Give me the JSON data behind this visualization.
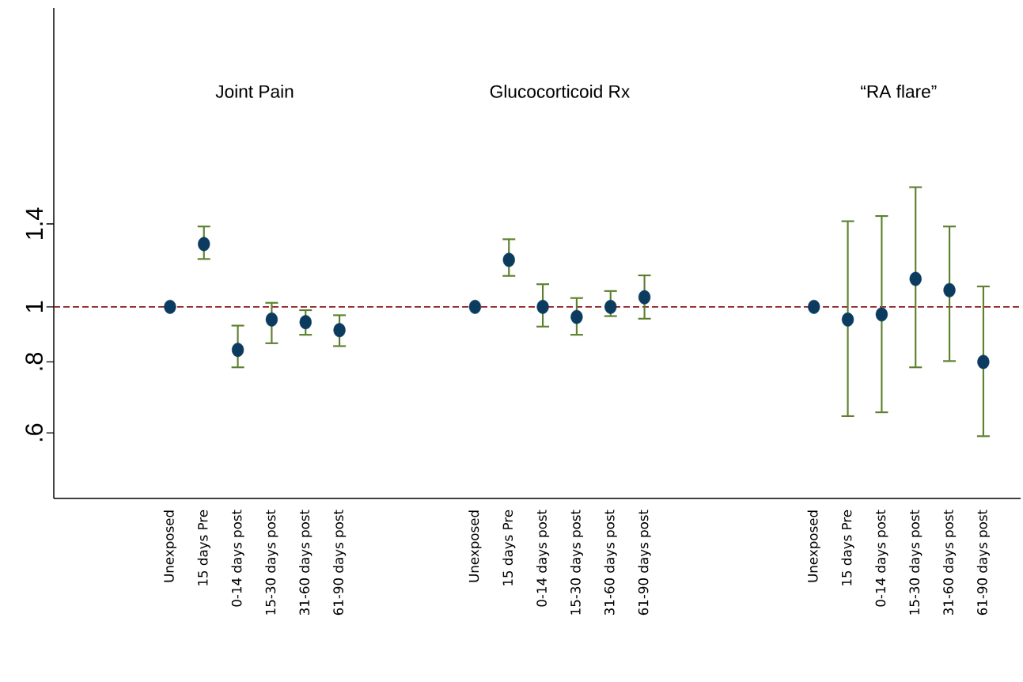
{
  "chart_data": {
    "type": "scatter",
    "categories": [
      "Unexposed",
      "15 days Pre",
      "0-14 days post",
      "15-30 days post",
      "31-60 days post",
      "61-90 days post",
      null,
      null,
      null,
      "Unexposed",
      "15 days Pre",
      "0-14 days post",
      "15-30 days post",
      "31-60 days post",
      "61-90 days post",
      null,
      null,
      null,
      null,
      "Unexposed",
      "15 days Pre",
      "0-14 days post",
      "15-30 days post",
      "31-60 days post",
      "61-90 days post"
    ],
    "values": [
      1.0,
      1.29,
      0.84,
      0.95,
      0.94,
      0.91,
      null,
      null,
      null,
      1.0,
      1.21,
      1.0,
      0.96,
      1.0,
      1.04,
      null,
      null,
      null,
      null,
      1.0,
      0.95,
      0.97,
      1.12,
      1.07,
      0.8
    ],
    "errors": [
      null,
      [
        1.21,
        1.39
      ],
      [
        0.78,
        0.93
      ],
      [
        0.86,
        1.02
      ],
      [
        0.89,
        0.99
      ],
      [
        0.85,
        0.97
      ],
      null,
      null,
      null,
      null,
      [
        1.13,
        1.32
      ],
      [
        0.92,
        1.1
      ],
      [
        0.89,
        1.04
      ],
      [
        0.96,
        1.07
      ],
      [
        0.95,
        1.14
      ],
      null,
      null,
      null,
      null,
      null,
      [
        0.64,
        1.42
      ],
      [
        0.65,
        1.45
      ],
      [
        0.78,
        1.63
      ],
      [
        0.8,
        1.39
      ],
      [
        0.59,
        1.09
      ]
    ],
    "color": "#0b3b5e",
    "marker": "circle",
    "log": "y",
    "ylim": [
      0.46,
      3.36
    ],
    "yticks": [
      {
        "value": 0.6,
        "label": ".6"
      },
      {
        "value": 0.8,
        "label": ".8"
      },
      1,
      1.4
    ],
    "ref_lines": [
      {
        "axis": "y",
        "value": 1,
        "color": "#8b1a1a",
        "line_style": "dashed"
      }
    ],
    "annotations": [
      "Joint Pain",
      "Glucocorticoid Rx",
      "“RA flare”"
    ]
  }
}
